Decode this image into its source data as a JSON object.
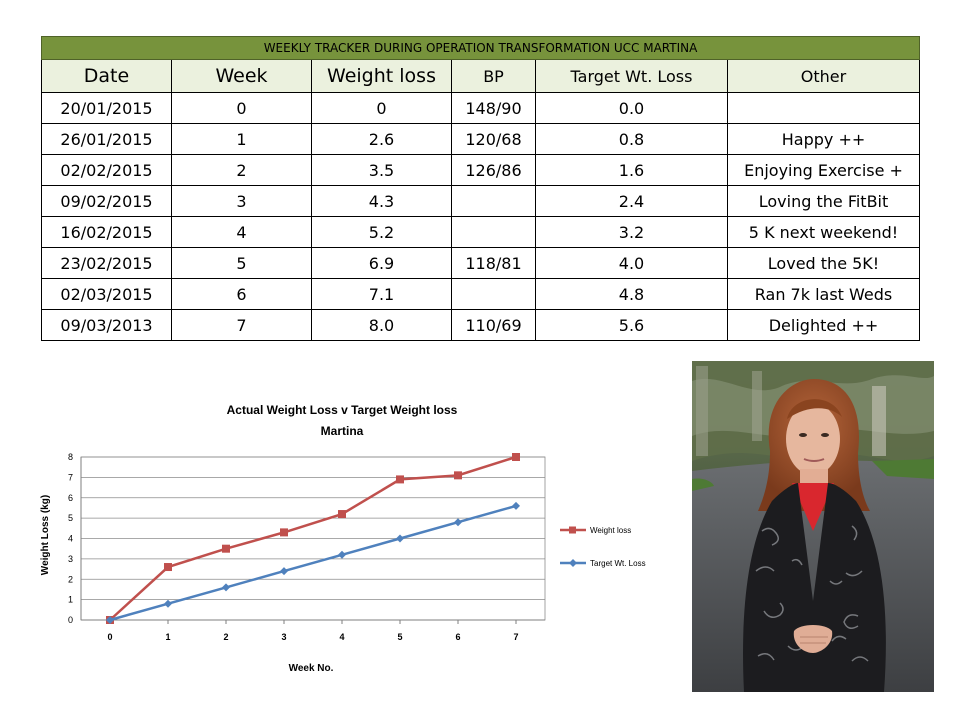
{
  "table": {
    "title": "WEEKLY TRACKER DURING OPERATION TRANSFORMATION UCC MARTINA",
    "headers": [
      "Date",
      "Week",
      "Weight loss",
      "BP",
      "Target Wt. Loss",
      "Other"
    ],
    "rows": [
      [
        "20/01/2015",
        "0",
        "0",
        "148/90",
        "0.0",
        ""
      ],
      [
        "26/01/2015",
        "1",
        "2.6",
        "120/68",
        "0.8",
        "Happy ++"
      ],
      [
        "02/02/2015",
        "2",
        "3.5",
        "126/86",
        "1.6",
        "Enjoying Exercise +"
      ],
      [
        "09/02/2015",
        "3",
        "4.3",
        "",
        "2.4",
        "Loving the FitBit"
      ],
      [
        "16/02/2015",
        "4",
        "5.2",
        "",
        "3.2",
        "5 K next weekend!"
      ],
      [
        "23/02/2015",
        "5",
        "6.9",
        "118/81",
        "4.0",
        "Loved the 5K!"
      ],
      [
        "02/03/2015",
        "6",
        "7.1",
        "",
        "4.8",
        "Ran 7k last Weds"
      ],
      [
        "09/03/2013",
        "7",
        "8.0",
        "110/69",
        "5.6",
        "Delighted ++"
      ]
    ]
  },
  "chart_data": {
    "type": "line",
    "title": [
      "Actual Weight Loss v Target Weight loss",
      "Martina"
    ],
    "xlabel": "Week No.",
    "ylabel": "Weight Loss (kg)",
    "x": [
      0,
      1,
      2,
      3,
      4,
      5,
      6,
      7
    ],
    "ylim": [
      0,
      8
    ],
    "yticks": [
      0,
      1,
      2,
      3,
      4,
      5,
      6,
      7,
      8
    ],
    "grid": true,
    "legend_position": "right",
    "series": [
      {
        "name": "Weight loss",
        "values": [
          0,
          2.6,
          3.5,
          4.3,
          5.2,
          6.9,
          7.1,
          8.0
        ],
        "color": "#c0504d",
        "marker": "square"
      },
      {
        "name": "Target Wt. Loss",
        "values": [
          0,
          0.8,
          1.6,
          2.4,
          3.2,
          4.0,
          4.8,
          5.6
        ],
        "color": "#4f81bd",
        "marker": "diamond"
      }
    ]
  },
  "photo": {
    "subject": "portrait-photo"
  },
  "colors": {
    "title_bar": "#77933c",
    "header_bg": "#ebf1de",
    "series_actual": "#c0504d",
    "series_target": "#4f81bd"
  }
}
